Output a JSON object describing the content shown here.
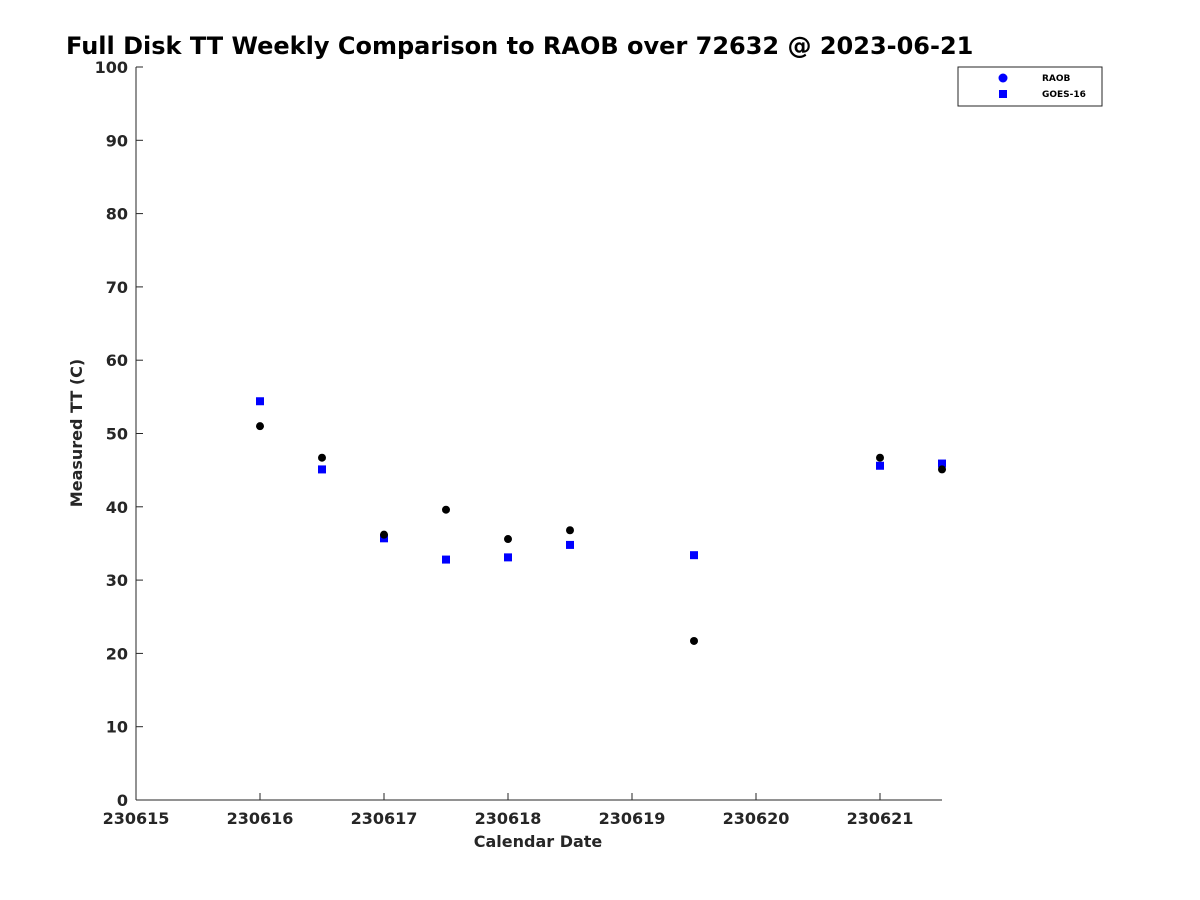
{
  "chart_data": {
    "type": "scatter",
    "title": "Full Disk TT Weekly Comparison to RAOB over 72632 @ 2023-06-21",
    "xlabel": "Calendar Date",
    "ylabel": "Measured TT (C)",
    "xlim": [
      230615,
      230621.5
    ],
    "ylim": [
      0,
      100
    ],
    "xticks": [
      230615,
      230616,
      230617,
      230618,
      230619,
      230620,
      230621
    ],
    "xtick_labels": [
      "230615",
      "230616",
      "230617",
      "230618",
      "230619",
      "230620",
      "230621"
    ],
    "yticks": [
      0,
      10,
      20,
      30,
      40,
      50,
      60,
      70,
      80,
      90,
      100
    ],
    "ytick_labels": [
      "0",
      "10",
      "20",
      "30",
      "40",
      "50",
      "60",
      "70",
      "80",
      "90",
      "100"
    ],
    "legend_position": "top-right",
    "series": [
      {
        "name": "RAOB",
        "marker": "circle",
        "color": "#000000",
        "legend_color": "#0000ff",
        "x": [
          230616,
          230616.5,
          230617,
          230617.5,
          230618,
          230618.5,
          230619.5,
          230621,
          230621.5
        ],
        "y": [
          51.0,
          46.7,
          36.2,
          39.6,
          35.6,
          36.8,
          21.7,
          46.7,
          45.1
        ]
      },
      {
        "name": "GOES-16",
        "marker": "square",
        "color": "#0000ff",
        "legend_color": "#0000ff",
        "x": [
          230616,
          230616.5,
          230617,
          230617.5,
          230618,
          230618.5,
          230619.5,
          230621,
          230621.5
        ],
        "y": [
          54.4,
          45.1,
          35.7,
          32.8,
          33.1,
          34.8,
          33.4,
          45.6,
          45.9
        ]
      }
    ]
  }
}
